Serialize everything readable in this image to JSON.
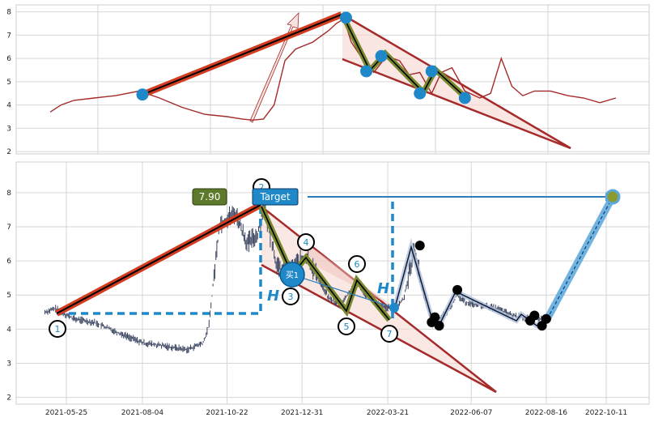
{
  "chart_data": [
    {
      "type": "line",
      "panel": "top",
      "title": "",
      "xlabel": "",
      "ylabel": "",
      "ylim": [
        1.9,
        8.3
      ],
      "y_ticks": [
        "2",
        "3",
        "4",
        "5",
        "6",
        "7",
        "8"
      ],
      "grid": true,
      "line_color": "#a52a2a",
      "series": [
        {
          "x": [
            "2021-05-10",
            "2021-05-20",
            "2021-06-01",
            "2021-06-20",
            "2021-07-10",
            "2021-08-01",
            "2021-08-20",
            "2021-09-10",
            "2021-10-01",
            "2021-10-22",
            "2021-11-05",
            "2021-11-15",
            "2021-11-25",
            "2021-12-05",
            "2021-12-15",
            "2021-12-25",
            "2022-01-10",
            "2022-01-25",
            "2022-02-01",
            "2022-02-08",
            "2022-02-15",
            "2022-02-25",
            "2022-03-08",
            "2022-03-20",
            "2022-04-01",
            "2022-04-10",
            "2022-04-20",
            "2022-05-01",
            "2022-05-10",
            "2022-05-20",
            "2022-06-01",
            "2022-06-15",
            "2022-06-25",
            "2022-07-05",
            "2022-07-15",
            "2022-07-25",
            "2022-08-05",
            "2022-08-20",
            "2022-09-05",
            "2022-09-20",
            "2022-10-05",
            "2022-10-20"
          ],
          "values": [
            3.7,
            4.0,
            4.2,
            4.3,
            4.4,
            4.6,
            4.3,
            3.9,
            3.6,
            3.5,
            3.4,
            3.35,
            3.4,
            4.0,
            5.9,
            6.4,
            6.7,
            7.2,
            7.5,
            7.7,
            6.7,
            6.0,
            5.4,
            6.1,
            5.9,
            5.3,
            5.4,
            4.5,
            5.4,
            5.6,
            4.6,
            4.3,
            4.5,
            6.0,
            4.8,
            4.4,
            4.6,
            4.6,
            4.4,
            4.3,
            4.1,
            4.3
          ]
        }
      ],
      "markers": [
        {
          "x": "2021-08-04",
          "y": 4.45
        },
        {
          "x": "2022-02-10",
          "y": 7.75
        },
        {
          "x": "2022-03-01",
          "y": 5.45
        },
        {
          "x": "2022-03-15",
          "y": 6.1
        },
        {
          "x": "2022-04-20",
          "y": 4.5
        },
        {
          "x": "2022-05-01",
          "y": 5.45
        },
        {
          "x": "2022-06-01",
          "y": 4.3
        }
      ]
    },
    {
      "type": "line",
      "panel": "bottom",
      "title": "",
      "xlabel": "",
      "ylabel": "",
      "ylim": [
        1.8,
        8.9
      ],
      "y_ticks": [
        "2",
        "3",
        "4",
        "5",
        "6",
        "7",
        "8"
      ],
      "x_ticks": [
        "2021-05-25",
        "2021-08-04",
        "2021-10-22",
        "2021-12-31",
        "2022-03-21",
        "2022-06-07",
        "2022-08-16",
        "2022-10-11"
      ],
      "grid": true,
      "price_labels": {
        "value_label": "7.90",
        "target_label": "Target",
        "buy_label": "买1",
        "h_label": "H"
      },
      "wave_labels": [
        "1",
        "2",
        "3",
        "4",
        "5",
        "6",
        "7"
      ],
      "series": [
        {
          "x": [
            "2021-05-05",
            "2021-05-15",
            "2021-06-01",
            "2021-06-20",
            "2021-07-05",
            "2021-07-20",
            "2021-08-04",
            "2021-08-25",
            "2021-09-15",
            "2021-09-30",
            "2021-10-05",
            "2021-10-15",
            "2021-10-30",
            "2021-11-10",
            "2021-11-20",
            "2021-11-25",
            "2021-12-01",
            "2021-12-08",
            "2021-12-18",
            "2021-12-25",
            "2022-01-05",
            "2022-01-15",
            "2022-01-25",
            "2022-02-05",
            "2022-02-20",
            "2022-03-01",
            "2022-03-15",
            "2022-03-28",
            "2022-04-05",
            "2022-04-15",
            "2022-04-22",
            "2022-05-01",
            "2022-05-08",
            "2022-05-15",
            "2022-05-25",
            "2022-06-01",
            "2022-06-15",
            "2022-07-01",
            "2022-07-15",
            "2022-08-01",
            "2022-08-16"
          ],
          "values": [
            4.5,
            4.6,
            4.3,
            4.2,
            4.0,
            3.8,
            3.6,
            3.5,
            3.4,
            3.6,
            4.1,
            7.1,
            7.4,
            6.5,
            6.8,
            7.7,
            6.8,
            5.8,
            5.6,
            5.9,
            6.1,
            5.5,
            4.9,
            4.7,
            5.4,
            5.0,
            4.65,
            4.6,
            4.9,
            6.4,
            5.2,
            4.2,
            4.3,
            4.5,
            5.0,
            4.8,
            4.7,
            4.6,
            4.4,
            4.3,
            4.3
          ]
        }
      ],
      "projection": {
        "from": {
          "x": "2022-08-16",
          "y": 4.3
        },
        "to": {
          "x": "2022-10-11",
          "y": 7.9
        }
      },
      "black_points": [
        {
          "x": "2022-04-20",
          "y": 6.45
        },
        {
          "x": "2022-05-01",
          "y": 4.2
        },
        {
          "x": "2022-05-04",
          "y": 4.35
        },
        {
          "x": "2022-05-08",
          "y": 4.1
        },
        {
          "x": "2022-05-25",
          "y": 5.15
        },
        {
          "x": "2022-08-01",
          "y": 4.25
        },
        {
          "x": "2022-08-05",
          "y": 4.4
        },
        {
          "x": "2022-08-12",
          "y": 4.1
        },
        {
          "x": "2022-08-16",
          "y": 4.3
        }
      ]
    }
  ]
}
